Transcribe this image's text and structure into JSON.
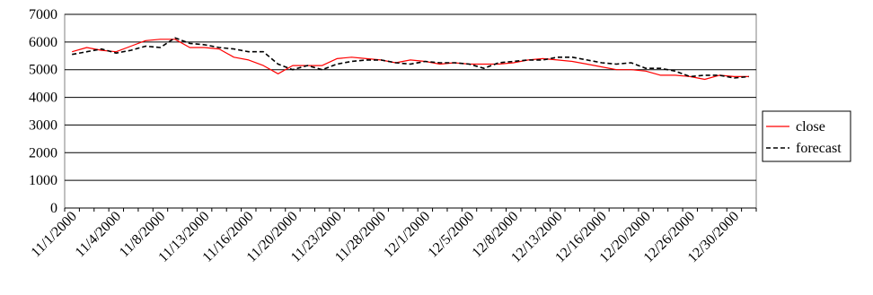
{
  "chart_data": {
    "type": "line",
    "title": "",
    "xlabel": "",
    "ylabel": "",
    "ylim": [
      0,
      7000
    ],
    "yticks": [
      0,
      1000,
      2000,
      3000,
      4000,
      5000,
      6000,
      7000
    ],
    "grid": "horizontal",
    "legend_position": "right",
    "x_tick_labels": [
      "11/1/2000",
      "11/4/2000",
      "11/8/2000",
      "11/13/2000",
      "11/16/2000",
      "11/20/2000",
      "11/23/2000",
      "11/28/2000",
      "12/1/2000",
      "12/5/2000",
      "12/8/2000",
      "12/13/2000",
      "12/16/2000",
      "12/20/2000",
      "12/26/2000",
      "12/30/2000"
    ],
    "series": [
      {
        "name": "close",
        "color": "#ff0000",
        "style": "solid",
        "values": [
          5650,
          5800,
          5700,
          5650,
          5850,
          6050,
          6100,
          6100,
          5800,
          5800,
          5750,
          5450,
          5350,
          5150,
          4850,
          5150,
          5150,
          5150,
          5400,
          5450,
          5400,
          5350,
          5250,
          5350,
          5300,
          5200,
          5250,
          5200,
          5200,
          5200,
          5250,
          5350,
          5400,
          5350,
          5300,
          5200,
          5100,
          5000,
          5000,
          4950,
          4800,
          4800,
          4750,
          4650,
          4800,
          4750,
          4750
        ]
      },
      {
        "name": "forecast",
        "color": "#000000",
        "style": "dashed",
        "values": [
          5550,
          5650,
          5750,
          5600,
          5700,
          5850,
          5800,
          6150,
          5950,
          5900,
          5800,
          5750,
          5650,
          5650,
          5200,
          5000,
          5150,
          5000,
          5200,
          5300,
          5350,
          5350,
          5250,
          5200,
          5300,
          5250,
          5250,
          5200,
          5050,
          5250,
          5300,
          5350,
          5350,
          5450,
          5450,
          5350,
          5250,
          5200,
          5250,
          5050,
          5050,
          4950,
          4750,
          4800,
          4800,
          4700,
          4750
        ]
      }
    ]
  }
}
